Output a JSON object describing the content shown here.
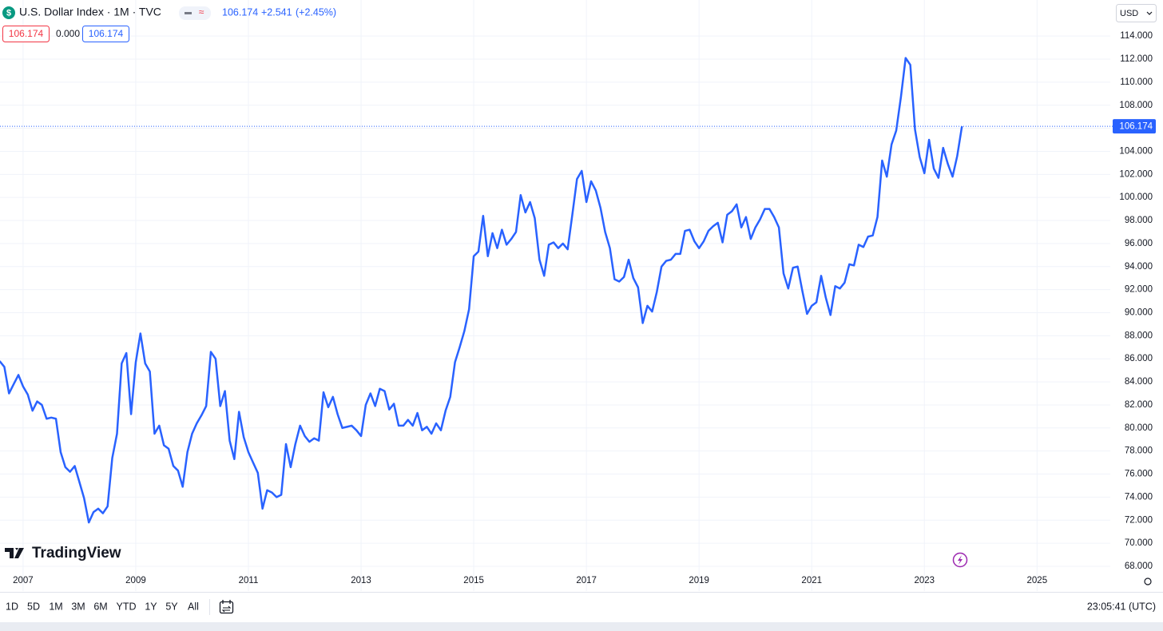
{
  "header": {
    "symbol": "U.S. Dollar Index · 1M · TVC",
    "price": "106.174",
    "change": "+2.541",
    "change_pct": "(+2.45%)",
    "open_box": "106.174",
    "spread": "0.000",
    "close_box": "106.174",
    "currency": "USD",
    "brand": "TradingView"
  },
  "toolbar": {
    "ranges": [
      "1D",
      "5D",
      "1M",
      "3M",
      "6M",
      "YTD",
      "1Y",
      "5Y",
      "All"
    ],
    "clock": "23:05:41 (UTC)"
  },
  "chart_data": {
    "type": "line",
    "xlim": [
      2006.59,
      2026.3
    ],
    "xticks": [
      2007,
      2009,
      2011,
      2013,
      2015,
      2017,
      2019,
      2021,
      2023,
      2025
    ],
    "ylim": [
      65.85,
      115.05
    ],
    "yticks": [
      {
        "value": 68,
        "label": "68.000"
      },
      {
        "value": 70,
        "label": "70.000"
      },
      {
        "value": 72,
        "label": "72.000"
      },
      {
        "value": 74,
        "label": "74.000"
      },
      {
        "value": 76,
        "label": "76.000"
      },
      {
        "value": 78,
        "label": "78.000"
      },
      {
        "value": 80,
        "label": "80.000"
      },
      {
        "value": 82,
        "label": "82.000"
      },
      {
        "value": 84,
        "label": "84.000"
      },
      {
        "value": 86,
        "label": "86.000"
      },
      {
        "value": 88,
        "label": "88.000"
      },
      {
        "value": 90,
        "label": "90.000"
      },
      {
        "value": 92,
        "label": "92.000"
      },
      {
        "value": 94,
        "label": "94.000"
      },
      {
        "value": 96,
        "label": "96.000"
      },
      {
        "value": 98,
        "label": "98.000"
      },
      {
        "value": 100,
        "label": "100.000"
      },
      {
        "value": 102,
        "label": "102.000"
      },
      {
        "value": 104,
        "label": "104.000"
      },
      {
        "value": 106,
        "label": "106.000"
      },
      {
        "value": 108,
        "label": "108.000"
      },
      {
        "value": 110,
        "label": "110.000"
      },
      {
        "value": 112,
        "label": "112.000"
      },
      {
        "value": 114,
        "label": "114.000"
      }
    ],
    "grid": true,
    "series": [
      {
        "color": "#2962ff",
        "x": [
          2006.583,
          2006.667,
          2006.75,
          2006.833,
          2006.917,
          2007,
          2007.083,
          2007.167,
          2007.25,
          2007.333,
          2007.417,
          2007.5,
          2007.583,
          2007.667,
          2007.75,
          2007.833,
          2007.917,
          2008,
          2008.083,
          2008.167,
          2008.25,
          2008.333,
          2008.417,
          2008.5,
          2008.583,
          2008.667,
          2008.75,
          2008.833,
          2008.917,
          2009,
          2009.083,
          2009.167,
          2009.25,
          2009.333,
          2009.417,
          2009.5,
          2009.583,
          2009.667,
          2009.75,
          2009.833,
          2009.917,
          2010,
          2010.083,
          2010.167,
          2010.25,
          2010.333,
          2010.417,
          2010.5,
          2010.583,
          2010.667,
          2010.75,
          2010.833,
          2010.917,
          2011,
          2011.083,
          2011.167,
          2011.25,
          2011.333,
          2011.417,
          2011.5,
          2011.583,
          2011.667,
          2011.75,
          2011.833,
          2011.917,
          2012,
          2012.083,
          2012.167,
          2012.25,
          2012.333,
          2012.417,
          2012.5,
          2012.583,
          2012.667,
          2012.75,
          2012.833,
          2012.917,
          2013,
          2013.083,
          2013.167,
          2013.25,
          2013.333,
          2013.417,
          2013.5,
          2013.583,
          2013.667,
          2013.75,
          2013.833,
          2013.917,
          2014,
          2014.083,
          2014.167,
          2014.25,
          2014.333,
          2014.417,
          2014.5,
          2014.583,
          2014.667,
          2014.75,
          2014.833,
          2014.917,
          2015,
          2015.083,
          2015.167,
          2015.25,
          2015.333,
          2015.417,
          2015.5,
          2015.583,
          2015.667,
          2015.75,
          2015.833,
          2015.917,
          2016,
          2016.083,
          2016.167,
          2016.25,
          2016.333,
          2016.417,
          2016.5,
          2016.583,
          2016.667,
          2016.75,
          2016.833,
          2016.917,
          2017,
          2017.083,
          2017.167,
          2017.25,
          2017.333,
          2017.417,
          2017.5,
          2017.583,
          2017.667,
          2017.75,
          2017.833,
          2017.917,
          2018,
          2018.083,
          2018.167,
          2018.25,
          2018.333,
          2018.417,
          2018.5,
          2018.583,
          2018.667,
          2018.75,
          2018.833,
          2018.917,
          2019,
          2019.083,
          2019.167,
          2019.25,
          2019.333,
          2019.417,
          2019.5,
          2019.583,
          2019.667,
          2019.75,
          2019.833,
          2019.917,
          2020,
          2020.083,
          2020.167,
          2020.25,
          2020.333,
          2020.417,
          2020.5,
          2020.583,
          2020.667,
          2020.75,
          2020.833,
          2020.917,
          2021,
          2021.083,
          2021.167,
          2021.25,
          2021.333,
          2021.417,
          2021.5,
          2021.583,
          2021.667,
          2021.75,
          2021.833,
          2021.917,
          2022,
          2022.083,
          2022.167,
          2022.25,
          2022.333,
          2022.417,
          2022.5,
          2022.583,
          2022.667,
          2022.75,
          2022.833,
          2022.917,
          2023,
          2023.083,
          2023.167,
          2023.25,
          2023.333,
          2023.417,
          2023.5,
          2023.583,
          2023.667
        ],
        "values": [
          85.8,
          85.3,
          83.0,
          83.8,
          84.6,
          83.6,
          82.9,
          81.5,
          82.3,
          82.0,
          80.8,
          80.9,
          80.8,
          77.9,
          76.6,
          76.2,
          76.7,
          75.3,
          73.9,
          71.8,
          72.7,
          73.0,
          72.6,
          73.2,
          77.4,
          79.5,
          85.6,
          86.5,
          81.2,
          85.7,
          88.2,
          85.6,
          84.9,
          79.5,
          80.2,
          78.5,
          78.2,
          76.7,
          76.3,
          74.9,
          77.9,
          79.5,
          80.4,
          81.1,
          81.9,
          86.6,
          86.0,
          81.9,
          83.2,
          78.9,
          77.3,
          81.4,
          79.2,
          77.9,
          77.0,
          76.1,
          73.0,
          74.6,
          74.4,
          74.0,
          74.2,
          78.6,
          76.6,
          78.6,
          80.2,
          79.3,
          78.8,
          79.1,
          78.9,
          83.1,
          81.8,
          82.7,
          81.2,
          80.0,
          80.1,
          80.2,
          79.8,
          79.3,
          82.0,
          83.0,
          81.9,
          83.4,
          83.2,
          81.6,
          82.1,
          80.2,
          80.2,
          80.7,
          80.2,
          81.3,
          79.8,
          80.1,
          79.5,
          80.4,
          79.8,
          81.5,
          82.7,
          85.7,
          87.0,
          88.4,
          90.3,
          94.9,
          95.3,
          98.4,
          94.9,
          96.9,
          95.6,
          97.2,
          95.9,
          96.4,
          97.0,
          100.2,
          98.7,
          99.6,
          98.2,
          94.6,
          93.2,
          95.9,
          96.1,
          95.6,
          96.0,
          95.5,
          98.5,
          101.6,
          102.3,
          99.6,
          101.4,
          100.6,
          99.1,
          97.0,
          95.6,
          92.9,
          92.7,
          93.1,
          94.6,
          93.0,
          92.2,
          89.1,
          90.6,
          90.1,
          91.8,
          94.0,
          94.5,
          94.6,
          95.1,
          95.1,
          97.1,
          97.2,
          96.2,
          95.6,
          96.2,
          97.1,
          97.5,
          97.8,
          96.1,
          98.5,
          98.8,
          99.4,
          97.4,
          98.3,
          96.4,
          97.4,
          98.1,
          99.0,
          99.0,
          98.3,
          97.4,
          93.4,
          92.1,
          93.9,
          94.0,
          91.9,
          89.9,
          90.6,
          90.9,
          93.2,
          91.3,
          89.8,
          92.3,
          92.1,
          92.6,
          94.2,
          94.1,
          95.9,
          95.7,
          96.6,
          96.7,
          98.3,
          103.2,
          101.8,
          104.6,
          105.8,
          108.7,
          112.1,
          111.5,
          105.9,
          103.5,
          102.1,
          105.0,
          102.5,
          101.7,
          104.3,
          102.9,
          101.8,
          103.6,
          106.174
        ]
      }
    ]
  }
}
